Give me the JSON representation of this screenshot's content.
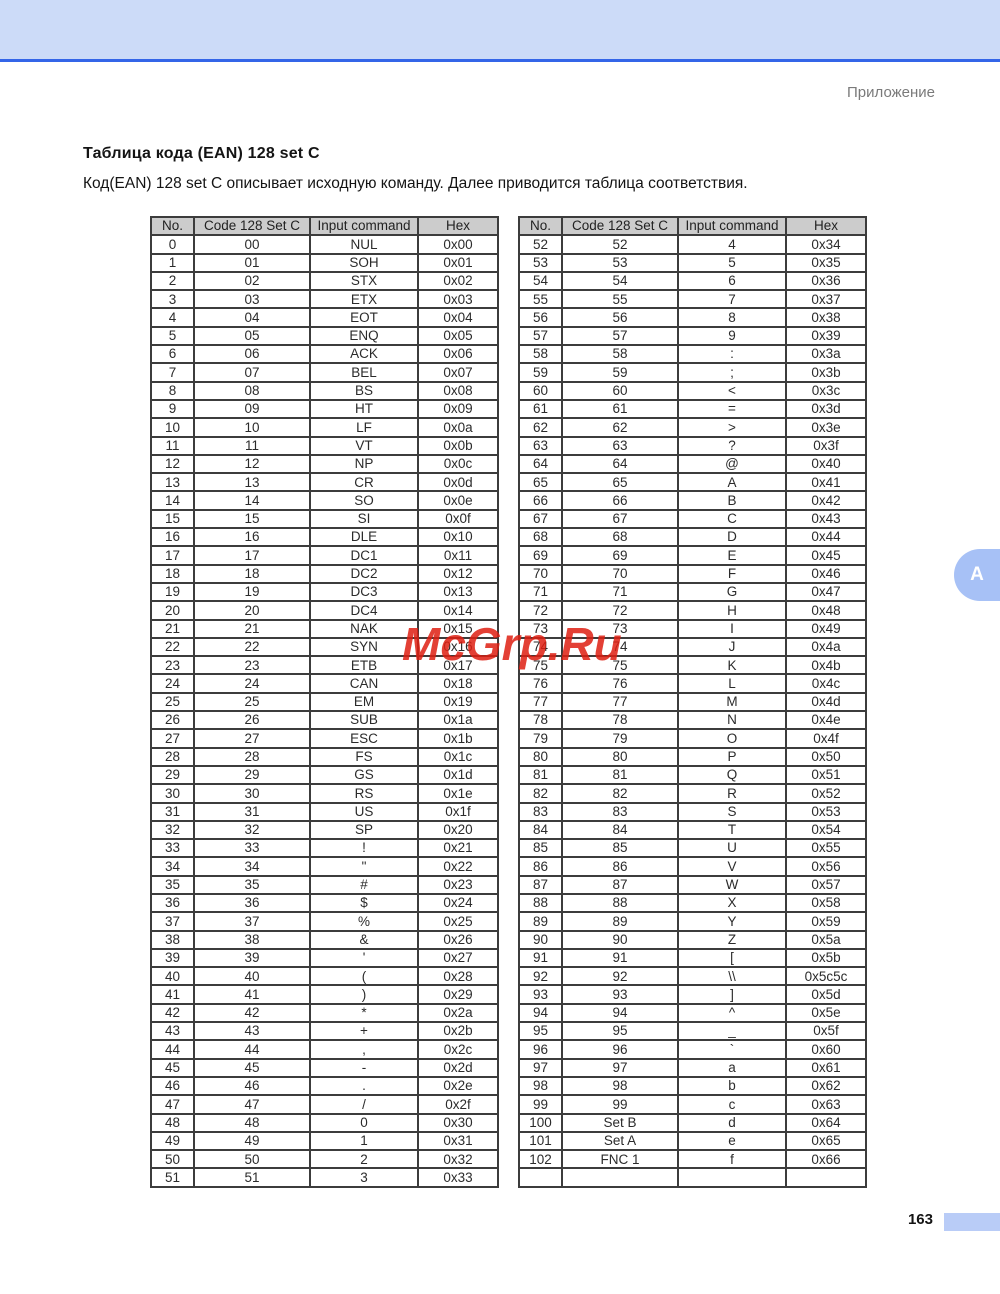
{
  "page": {
    "section_label": "Приложение",
    "title": "Таблица кода (EAN) 128 set C",
    "intro": "Код(EAN) 128 set C описывает исходную команду. Далее приводится таблица соответствия.",
    "page_number": "163",
    "side_tab_label": "A"
  },
  "watermark": {
    "text": "McGrp.Ru",
    "color": "#de1e12"
  },
  "colors": {
    "header_bar": "#ccdbf8",
    "header_line": "#3465e8",
    "table_header_bg": "#cccccc",
    "side_tab": "#a7c1f6",
    "footer_bar": "#b9ccf7"
  },
  "tables": {
    "left": {
      "headers": [
        "No.",
        "Code 128 Set C",
        "Input command",
        "Hex"
      ],
      "rows": [
        [
          "0",
          "00",
          "NUL",
          "0x00"
        ],
        [
          "1",
          "01",
          "SOH",
          "0x01"
        ],
        [
          "2",
          "02",
          "STX",
          "0x02"
        ],
        [
          "3",
          "03",
          "ETX",
          "0x03"
        ],
        [
          "4",
          "04",
          "EOT",
          "0x04"
        ],
        [
          "5",
          "05",
          "ENQ",
          "0x05"
        ],
        [
          "6",
          "06",
          "ACK",
          "0x06"
        ],
        [
          "7",
          "07",
          "BEL",
          "0x07"
        ],
        [
          "8",
          "08",
          "BS",
          "0x08"
        ],
        [
          "9",
          "09",
          "HT",
          "0x09"
        ],
        [
          "10",
          "10",
          "LF",
          "0x0a"
        ],
        [
          "11",
          "11",
          "VT",
          "0x0b"
        ],
        [
          "12",
          "12",
          "NP",
          "0x0c"
        ],
        [
          "13",
          "13",
          "CR",
          "0x0d"
        ],
        [
          "14",
          "14",
          "SO",
          "0x0e"
        ],
        [
          "15",
          "15",
          "SI",
          "0x0f"
        ],
        [
          "16",
          "16",
          "DLE",
          "0x10"
        ],
        [
          "17",
          "17",
          "DC1",
          "0x11"
        ],
        [
          "18",
          "18",
          "DC2",
          "0x12"
        ],
        [
          "19",
          "19",
          "DC3",
          "0x13"
        ],
        [
          "20",
          "20",
          "DC4",
          "0x14"
        ],
        [
          "21",
          "21",
          "NAK",
          "0x15"
        ],
        [
          "22",
          "22",
          "SYN",
          "0x16"
        ],
        [
          "23",
          "23",
          "ETB",
          "0x17"
        ],
        [
          "24",
          "24",
          "CAN",
          "0x18"
        ],
        [
          "25",
          "25",
          "EM",
          "0x19"
        ],
        [
          "26",
          "26",
          "SUB",
          "0x1a"
        ],
        [
          "27",
          "27",
          "ESC",
          "0x1b"
        ],
        [
          "28",
          "28",
          "FS",
          "0x1c"
        ],
        [
          "29",
          "29",
          "GS",
          "0x1d"
        ],
        [
          "30",
          "30",
          "RS",
          "0x1e"
        ],
        [
          "31",
          "31",
          "US",
          "0x1f"
        ],
        [
          "32",
          "32",
          "SP",
          "0x20"
        ],
        [
          "33",
          "33",
          "!",
          "0x21"
        ],
        [
          "34",
          "34",
          "\"",
          "0x22"
        ],
        [
          "35",
          "35",
          "#",
          "0x23"
        ],
        [
          "36",
          "36",
          "$",
          "0x24"
        ],
        [
          "37",
          "37",
          "%",
          "0x25"
        ],
        [
          "38",
          "38",
          "&",
          "0x26"
        ],
        [
          "39",
          "39",
          "'",
          "0x27"
        ],
        [
          "40",
          "40",
          "(",
          "0x28"
        ],
        [
          "41",
          "41",
          ")",
          "0x29"
        ],
        [
          "42",
          "42",
          "*",
          "0x2a"
        ],
        [
          "43",
          "43",
          "+",
          "0x2b"
        ],
        [
          "44",
          "44",
          ",",
          "0x2c"
        ],
        [
          "45",
          "45",
          "-",
          "0x2d"
        ],
        [
          "46",
          "46",
          ".",
          "0x2e"
        ],
        [
          "47",
          "47",
          "/",
          "0x2f"
        ],
        [
          "48",
          "48",
          "0",
          "0x30"
        ],
        [
          "49",
          "49",
          "1",
          "0x31"
        ],
        [
          "50",
          "50",
          "2",
          "0x32"
        ],
        [
          "51",
          "51",
          "3",
          "0x33"
        ]
      ]
    },
    "right": {
      "headers": [
        "No.",
        "Code 128 Set C",
        "Input command",
        "Hex"
      ],
      "rows": [
        [
          "52",
          "52",
          "4",
          "0x34"
        ],
        [
          "53",
          "53",
          "5",
          "0x35"
        ],
        [
          "54",
          "54",
          "6",
          "0x36"
        ],
        [
          "55",
          "55",
          "7",
          "0x37"
        ],
        [
          "56",
          "56",
          "8",
          "0x38"
        ],
        [
          "57",
          "57",
          "9",
          "0x39"
        ],
        [
          "58",
          "58",
          ":",
          "0x3a"
        ],
        [
          "59",
          "59",
          ";",
          "0x3b"
        ],
        [
          "60",
          "60",
          "<",
          "0x3c"
        ],
        [
          "61",
          "61",
          "=",
          "0x3d"
        ],
        [
          "62",
          "62",
          ">",
          "0x3e"
        ],
        [
          "63",
          "63",
          "?",
          "0x3f"
        ],
        [
          "64",
          "64",
          "@",
          "0x40"
        ],
        [
          "65",
          "65",
          "A",
          "0x41"
        ],
        [
          "66",
          "66",
          "B",
          "0x42"
        ],
        [
          "67",
          "67",
          "C",
          "0x43"
        ],
        [
          "68",
          "68",
          "D",
          "0x44"
        ],
        [
          "69",
          "69",
          "E",
          "0x45"
        ],
        [
          "70",
          "70",
          "F",
          "0x46"
        ],
        [
          "71",
          "71",
          "G",
          "0x47"
        ],
        [
          "72",
          "72",
          "H",
          "0x48"
        ],
        [
          "73",
          "73",
          "I",
          "0x49"
        ],
        [
          "74",
          "74",
          "J",
          "0x4a"
        ],
        [
          "75",
          "75",
          "K",
          "0x4b"
        ],
        [
          "76",
          "76",
          "L",
          "0x4c"
        ],
        [
          "77",
          "77",
          "M",
          "0x4d"
        ],
        [
          "78",
          "78",
          "N",
          "0x4e"
        ],
        [
          "79",
          "79",
          "O",
          "0x4f"
        ],
        [
          "80",
          "80",
          "P",
          "0x50"
        ],
        [
          "81",
          "81",
          "Q",
          "0x51"
        ],
        [
          "82",
          "82",
          "R",
          "0x52"
        ],
        [
          "83",
          "83",
          "S",
          "0x53"
        ],
        [
          "84",
          "84",
          "T",
          "0x54"
        ],
        [
          "85",
          "85",
          "U",
          "0x55"
        ],
        [
          "86",
          "86",
          "V",
          "0x56"
        ],
        [
          "87",
          "87",
          "W",
          "0x57"
        ],
        [
          "88",
          "88",
          "X",
          "0x58"
        ],
        [
          "89",
          "89",
          "Y",
          "0x59"
        ],
        [
          "90",
          "90",
          "Z",
          "0x5a"
        ],
        [
          "91",
          "91",
          "[",
          "0x5b"
        ],
        [
          "92",
          "92",
          "\\\\",
          "0x5c5c"
        ],
        [
          "93",
          "93",
          "]",
          "0x5d"
        ],
        [
          "94",
          "94",
          "^",
          "0x5e"
        ],
        [
          "95",
          "95",
          "_",
          "0x5f"
        ],
        [
          "96",
          "96",
          "`",
          "0x60"
        ],
        [
          "97",
          "97",
          "a",
          "0x61"
        ],
        [
          "98",
          "98",
          "b",
          "0x62"
        ],
        [
          "99",
          "99",
          "c",
          "0x63"
        ],
        [
          "100",
          "Set B",
          "d",
          "0x64"
        ],
        [
          "101",
          "Set A",
          "e",
          "0x65"
        ],
        [
          "102",
          "FNC 1",
          "f",
          "0x66"
        ],
        [
          "",
          "",
          "",
          ""
        ]
      ]
    }
  }
}
